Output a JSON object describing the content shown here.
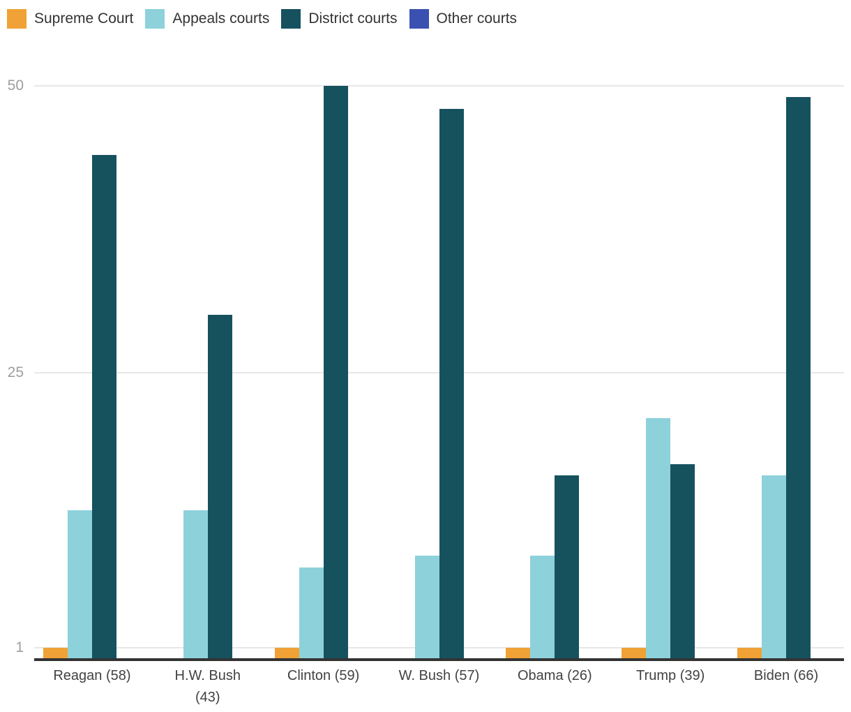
{
  "chart_data": {
    "type": "bar",
    "title": "",
    "categories": [
      "Reagan (58)",
      "H.W. Bush (43)",
      "Clinton (59)",
      "W. Bush (57)",
      "Obama (26)",
      "Trump (39)",
      "Biden (66)"
    ],
    "category_label_lines": [
      [
        "Reagan (58)"
      ],
      [
        "H.W. Bush",
        "(43)"
      ],
      [
        "Clinton (59)"
      ],
      [
        "W. Bush (57)"
      ],
      [
        "Obama (26)"
      ],
      [
        "Trump (39)"
      ],
      [
        "Biden (66)"
      ]
    ],
    "series": [
      {
        "name": "Supreme Court",
        "color": "#F0A236",
        "values": [
          1,
          0,
          1,
          0,
          1,
          1,
          1
        ]
      },
      {
        "name": "Appeals courts",
        "color": "#8DD1DB",
        "values": [
          13,
          13,
          8,
          9,
          9,
          21,
          16
        ]
      },
      {
        "name": "District courts",
        "color": "#16525E",
        "values": [
          44,
          30,
          50,
          48,
          16,
          17,
          49
        ]
      },
      {
        "name": "Other courts",
        "color": "#3A51B1",
        "values": [
          0,
          0,
          0,
          0,
          0,
          0,
          0
        ]
      }
    ],
    "yticks": [
      1,
      25,
      50
    ],
    "ylim": [
      0,
      52
    ],
    "grid": true,
    "legend_position": "top-left",
    "xlabel": "",
    "ylabel": "",
    "colors": {
      "gridline": "#e7e7e7",
      "axis_line": "#333333",
      "ytick_text": "#9e9e9e",
      "xtick_text": "#424242",
      "legend_text": "#333333"
    }
  }
}
